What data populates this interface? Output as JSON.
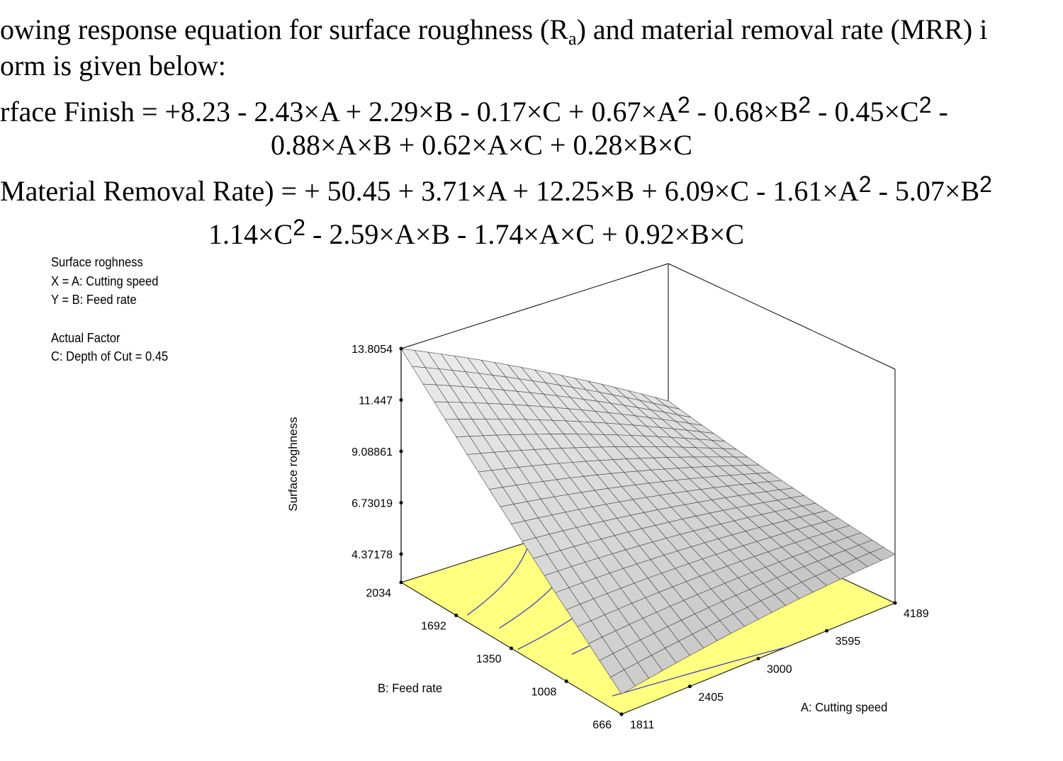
{
  "text": {
    "line1_a": "owing response equation for surface roughness (R",
    "line1_sub": "a",
    "line1_b": ") and material removal rate (MRR) i",
    "line2": "orm is given below:",
    "eq1_lhs": "rface Finish =  +8.23 - 2.43×A + 2.29×B - 0.17×C + 0.67×A",
    "eq1_mid1": " - 0.68×B",
    "eq1_mid2": " - 0.45×C",
    "eq1_end": " -",
    "eq1_line2": "0.88×A×B + 0.62×A×C + 0.28×B×C",
    "eq2_lhs": "Material Removal Rate) = + 50.45 + 3.71×A + 12.25×B + 6.09×C - 1.61×A",
    "eq2_mid": " - 5.07×B",
    "eq2_line2a": "1.14×C",
    "eq2_line2b": " - 2.59×A×B - 1.74×A×C + 0.92×B×C",
    "sq": "2"
  },
  "chart_data": {
    "type": "surface3d",
    "legend_lines": [
      "Surface roghness",
      "X = A: Cutting speed",
      "Y = B: Feed rate",
      "",
      "Actual Factor",
      "C: Depth of Cut = 0.45"
    ],
    "zlabel": "Surface roghness",
    "xlabel": "A: Cutting speed",
    "ylabel": "B: Feed rate",
    "x_ticks": [
      1811,
      2405,
      3000,
      3595,
      4189
    ],
    "y_ticks": [
      666,
      1008,
      1350,
      1692,
      2034
    ],
    "z_ticks": [
      "4.37178",
      "6.73019",
      "9.08861",
      "11.447",
      "13.8054"
    ],
    "surface_corner_values": {
      "A_low_B_high": 13.8054,
      "A_high_B_high": 7.5,
      "A_low_B_low": 4.0,
      "A_high_B_low": 5.3
    },
    "surface_color": "#dcdcdc",
    "floor_color": "#ffff80",
    "contour_color": "#3333cc",
    "grid_divisions": 20
  }
}
